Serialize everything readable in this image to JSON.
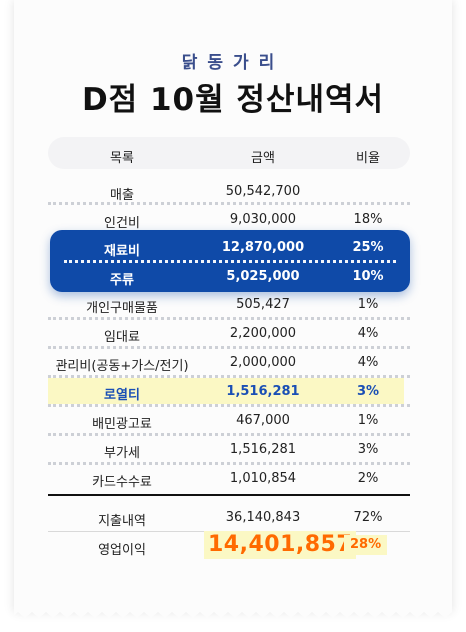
{
  "brand": "닭동가리",
  "title": "D점 10월 정산내역서",
  "columns": {
    "item": "목록",
    "amount": "금액",
    "rate": "비율"
  },
  "rows": [
    {
      "item": "매출",
      "amount": "50,542,700",
      "rate": ""
    },
    {
      "item": "인건비",
      "amount": "9,030,000",
      "rate": "18%"
    },
    {
      "item": "재료비",
      "amount": "12,870,000",
      "rate": "25%"
    },
    {
      "item": "주류",
      "amount": "5,025,000",
      "rate": "10%"
    },
    {
      "item": "개인구매물품",
      "amount": "505,427",
      "rate": "1%"
    },
    {
      "item": "임대료",
      "amount": "2,200,000",
      "rate": "4%"
    },
    {
      "item": "관리비(공동+가스/전기)",
      "amount": "2,000,000",
      "rate": "4%"
    },
    {
      "item": "로열티",
      "amount": "1,516,281",
      "rate": "3%"
    },
    {
      "item": "배민광고료",
      "amount": "467,000",
      "rate": "1%"
    },
    {
      "item": "부가세",
      "amount": "1,516,281",
      "rate": "3%"
    },
    {
      "item": "카드수수료",
      "amount": "1,010,854",
      "rate": "2%"
    }
  ],
  "summary": {
    "expense": {
      "label": "지출내역",
      "amount": "36,140,843",
      "rate": "72%"
    },
    "profit": {
      "label": "영업이익",
      "amount": "14,401,857",
      "rate": "28%"
    }
  },
  "colors": {
    "brand": "#3a4e8c",
    "highlight_blue": "#0f4aa8",
    "highlight_yellow": "#fbf8c4",
    "profit": "#ff6a00"
  }
}
